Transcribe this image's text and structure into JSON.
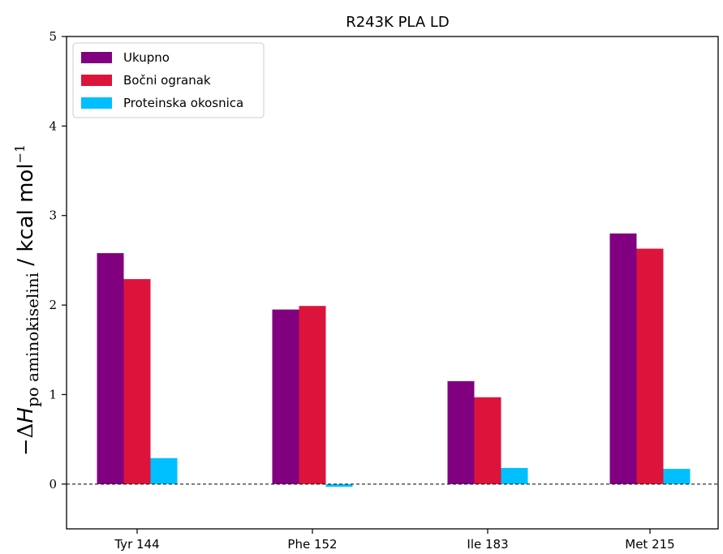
{
  "chart_data": {
    "type": "bar",
    "title": "R243K PLA LD",
    "ylabel": "−ΔH_po aminokiselini / kcal mol⁻¹",
    "ylabel_parts": {
      "prefix": "−Δ",
      "symbol": "H",
      "subscript": "po aminokiselini",
      "unit": " / kcal mol",
      "unit_sup": "−1"
    },
    "xlabel": "",
    "categories": [
      "Tyr 144",
      "Phe 152",
      "Ile 183",
      "Met 215"
    ],
    "series": [
      {
        "name": "Ukupno",
        "color": "#800080",
        "values": [
          2.58,
          1.95,
          1.15,
          2.8
        ]
      },
      {
        "name": "Bočni ogranak",
        "color": "#dc143c",
        "values": [
          2.29,
          1.99,
          0.97,
          2.63
        ]
      },
      {
        "name": "Proteinska okosnica",
        "color": "#00bfff",
        "values": [
          0.29,
          -0.03,
          0.18,
          0.17
        ]
      }
    ],
    "ylim": [
      -0.5,
      5
    ],
    "yticks": [
      0,
      1,
      2,
      3,
      4,
      5
    ],
    "grid": false,
    "zero_line": "dashed",
    "legend": "top-left"
  }
}
